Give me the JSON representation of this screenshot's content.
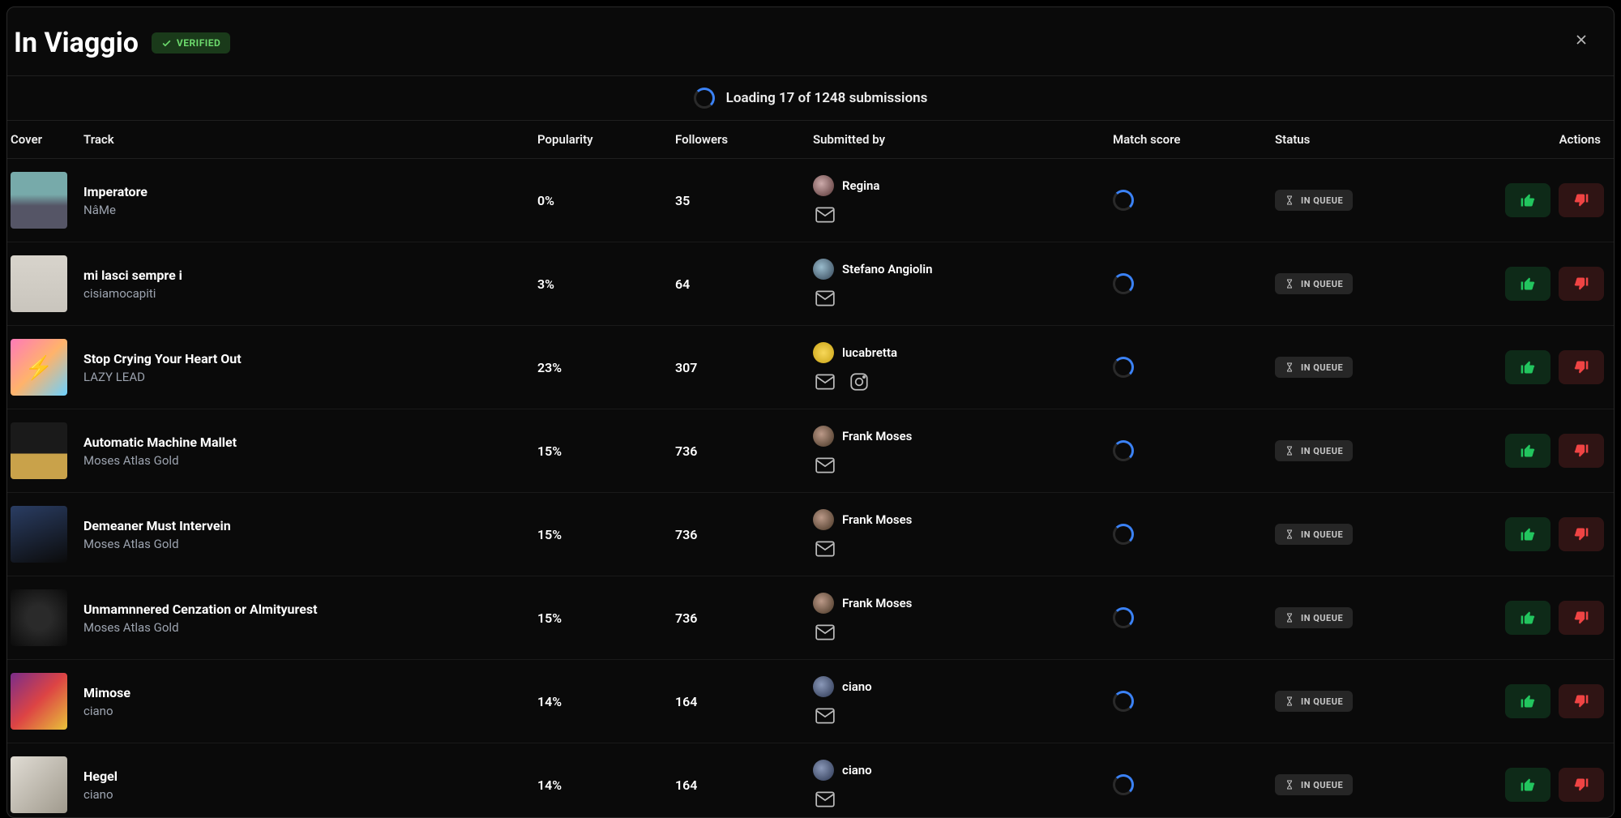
{
  "header": {
    "title": "In Viaggio",
    "verified_label": "VERIFIED"
  },
  "loading": {
    "text": "Loading 17 of 1248 submissions"
  },
  "columns": {
    "cover": "Cover",
    "track": "Track",
    "popularity": "Popularity",
    "followers": "Followers",
    "submitted_by": "Submitted by",
    "match_score": "Match score",
    "status": "Status",
    "actions": "Actions"
  },
  "status_label": "IN QUEUE",
  "colors": {
    "background": "#0a0a0a",
    "border": "#1f1f1f",
    "text_primary": "#ffffff",
    "text_secondary": "#9ca3af",
    "accent_blue": "#3b82f6",
    "badge_verified_bg": "#1a3a1a",
    "badge_verified_fg": "#6cd96c",
    "status_bg": "#262626",
    "status_fg": "#c7c7c7",
    "approve_bg": "#0e2a18",
    "approve_fg": "#22c55e",
    "reject_bg": "#2f1414",
    "reject_fg": "#ef4444"
  },
  "rows": [
    {
      "track_title": "Imperatore",
      "track_artist": "NâMe",
      "popularity": "0%",
      "followers": "35",
      "submitter": "Regina",
      "avatar_class": "av-r",
      "cover_class": "cov0",
      "has_instagram": false
    },
    {
      "track_title": "mi lasci sempre i",
      "track_artist": "cisiamocapiti",
      "popularity": "3%",
      "followers": "64",
      "submitter": "Stefano Angiolin",
      "avatar_class": "av-s",
      "cover_class": "cov1",
      "has_instagram": false
    },
    {
      "track_title": "Stop Crying Your Heart Out",
      "track_artist": "LAZY LEAD",
      "popularity": "23%",
      "followers": "307",
      "submitter": "lucabretta",
      "avatar_class": "av-l",
      "cover_class": "cov2",
      "has_instagram": true
    },
    {
      "track_title": "Automatic Machine Mallet",
      "track_artist": "Moses Atlas Gold",
      "popularity": "15%",
      "followers": "736",
      "submitter": "Frank Moses",
      "avatar_class": "av-f",
      "cover_class": "cov3",
      "has_instagram": false
    },
    {
      "track_title": "Demeaner Must Intervein",
      "track_artist": "Moses Atlas Gold",
      "popularity": "15%",
      "followers": "736",
      "submitter": "Frank Moses",
      "avatar_class": "av-f",
      "cover_class": "cov4",
      "has_instagram": false
    },
    {
      "track_title": "Unmamnnered Cenzation or Almityurest",
      "track_artist": "Moses Atlas Gold",
      "popularity": "15%",
      "followers": "736",
      "submitter": "Frank Moses",
      "avatar_class": "av-f",
      "cover_class": "cov5",
      "has_instagram": false
    },
    {
      "track_title": "Mimose",
      "track_artist": "ciano",
      "popularity": "14%",
      "followers": "164",
      "submitter": "ciano",
      "avatar_class": "av-c",
      "cover_class": "cov6",
      "has_instagram": false
    },
    {
      "track_title": "Hegel",
      "track_artist": "ciano",
      "popularity": "14%",
      "followers": "164",
      "submitter": "ciano",
      "avatar_class": "av-c",
      "cover_class": "cov7",
      "has_instagram": false
    }
  ]
}
